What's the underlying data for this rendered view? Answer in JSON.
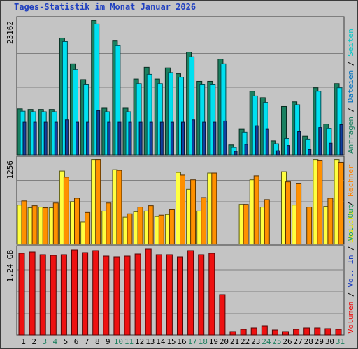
{
  "title": "Tages-Statistik im Monat Januar 2026",
  "chart_data": [
    {
      "type": "bar",
      "panel": "top",
      "y_label": "23162",
      "ylim": [
        0,
        23162
      ],
      "categories": [
        "1",
        "2",
        "3",
        "4",
        "5",
        "6",
        "7",
        "8",
        "9",
        "10",
        "11",
        "12",
        "13",
        "14",
        "15",
        "16",
        "17",
        "18",
        "19",
        "20",
        "21",
        "22",
        "23",
        "24",
        "25",
        "26",
        "27",
        "28",
        "29",
        "30",
        "31"
      ],
      "legend": [
        "Anfragen",
        "/",
        "Dateien",
        "/",
        "Seiten"
      ],
      "series": [
        {
          "name": "Anfragen",
          "color": "#1a8060",
          "values": [
            7900,
            7800,
            7800,
            7800,
            20000,
            15600,
            12900,
            23000,
            8000,
            19500,
            8000,
            13000,
            15000,
            13000,
            14900,
            13900,
            17600,
            12600,
            12600,
            16400,
            1700,
            4400,
            10900,
            9800,
            2400,
            8300,
            9100,
            3200,
            11500,
            5300,
            12200
          ]
        },
        {
          "name": "Dateien",
          "color": "#00e0f0",
          "values": [
            7500,
            7400,
            7400,
            7400,
            19400,
            14600,
            12000,
            22400,
            7400,
            18700,
            7400,
            12200,
            13800,
            12200,
            14100,
            13300,
            16800,
            12000,
            12000,
            15600,
            1300,
            3900,
            10100,
            9000,
            1900,
            2800,
            8600,
            2700,
            10900,
            4500,
            11500
          ]
        },
        {
          "name": "Seiten",
          "color": "#1040a0",
          "values": [
            5600,
            5600,
            5600,
            5600,
            6000,
            5600,
            5600,
            7600,
            5600,
            5600,
            5600,
            5600,
            5600,
            5600,
            5600,
            5600,
            6000,
            5600,
            5600,
            5800,
            600,
            1800,
            5000,
            4400,
            700,
            1600,
            4000,
            900,
            4700,
            2000,
            5200
          ]
        }
      ]
    },
    {
      "type": "bar",
      "panel": "middle",
      "y_label": "1256",
      "ylim": [
        0,
        1256
      ],
      "categories": [
        "1",
        "2",
        "3",
        "4",
        "5",
        "6",
        "7",
        "8",
        "9",
        "10",
        "11",
        "12",
        "13",
        "14",
        "15",
        "16",
        "17",
        "18",
        "19",
        "20",
        "21",
        "22",
        "23",
        "24",
        "25",
        "26",
        "27",
        "28",
        "29",
        "30",
        "31"
      ],
      "legend": [
        "Besuche",
        "/",
        "Rechner"
      ],
      "series": [
        {
          "name": "Besuche",
          "color": "#ffff40",
          "values": [
            580,
            540,
            550,
            540,
            1080,
            630,
            330,
            1250,
            490,
            1100,
            400,
            480,
            490,
            410,
            440,
            1060,
            810,
            490,
            1050,
            0,
            0,
            590,
            950,
            550,
            0,
            1070,
            580,
            0,
            1250,
            560,
            1250
          ]
        },
        {
          "name": "Rechner",
          "color": "#ff9000",
          "values": [
            640,
            570,
            540,
            610,
            990,
            680,
            470,
            1250,
            610,
            1090,
            450,
            550,
            570,
            430,
            510,
            1020,
            950,
            690,
            1050,
            0,
            0,
            590,
            1010,
            660,
            0,
            920,
            900,
            550,
            1240,
            680,
            1210
          ]
        }
      ]
    },
    {
      "type": "bar",
      "panel": "bottom",
      "y_label": "1.24 GB",
      "ylim": [
        0,
        1.24
      ],
      "categories": [
        "1",
        "2",
        "3",
        "4",
        "5",
        "6",
        "7",
        "8",
        "9",
        "10",
        "11",
        "12",
        "13",
        "14",
        "15",
        "16",
        "17",
        "18",
        "19",
        "20",
        "21",
        "22",
        "23",
        "24",
        "25",
        "26",
        "27",
        "28",
        "29",
        "30",
        "31"
      ],
      "legend": [
        "Volumen",
        "/",
        "Vol. In",
        "/",
        "Vol. Out"
      ],
      "series": [
        {
          "name": "Volumen",
          "color": "#ee1111",
          "values": [
            1.17,
            1.19,
            1.15,
            1.14,
            1.15,
            1.22,
            1.18,
            1.21,
            1.13,
            1.12,
            1.13,
            1.16,
            1.23,
            1.15,
            1.15,
            1.12,
            1.21,
            1.15,
            1.17,
            0.58,
            0.05,
            0.08,
            0.1,
            0.13,
            0.07,
            0.05,
            0.08,
            0.1,
            0.1,
            0.09,
            0.08
          ]
        }
      ]
    }
  ],
  "legend_colors": {
    "anfragen": "#1a8060",
    "dateien": "#0070c0",
    "seiten": "#00c8c8",
    "besuche": "#e8e800",
    "rechner": "#ff8000",
    "vol_out": "#20a060",
    "vol_in": "#2040c0",
    "volumen": "#ee1111",
    "separator": "#000000"
  },
  "weekend_days": [
    "3",
    "4",
    "10",
    "11",
    "17",
    "18",
    "24",
    "25",
    "31"
  ],
  "colors": {
    "weekday_label": "#000000",
    "weekend_label": "#208060",
    "background": "#c4c4c4",
    "gridline": "#808080"
  }
}
